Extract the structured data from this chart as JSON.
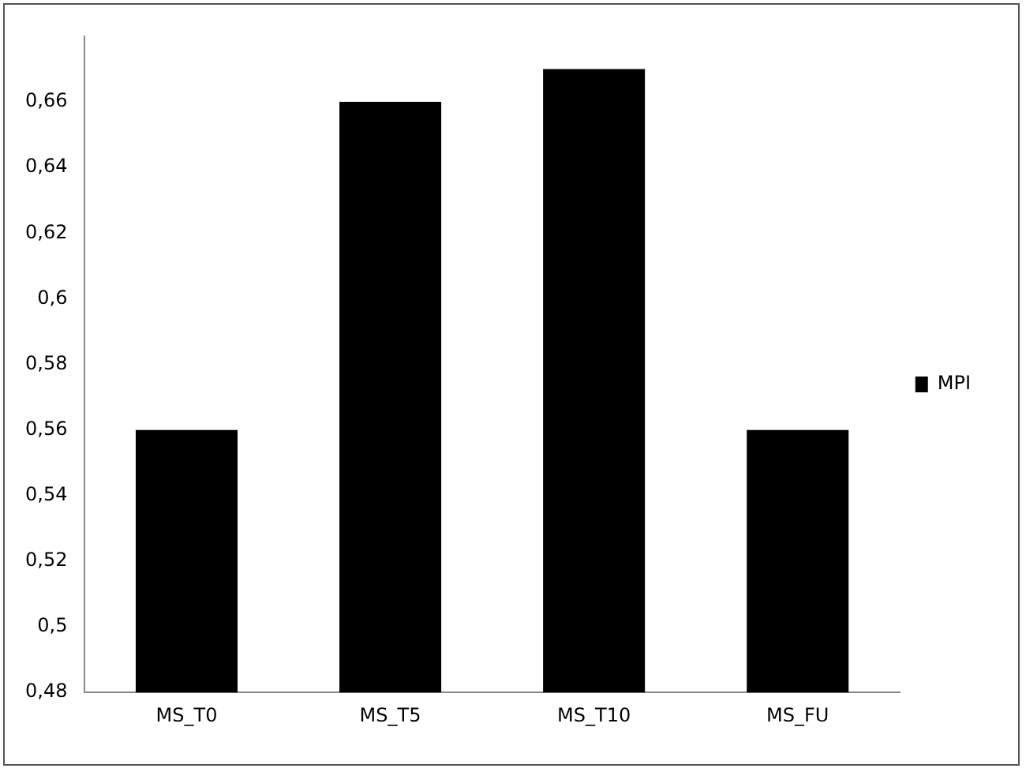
{
  "chart_data": {
    "type": "bar",
    "categories": [
      "MS_T0",
      "MS_T5",
      "MS_T10",
      "MS_FU"
    ],
    "series": [
      {
        "name": "MPI",
        "color": "#000000",
        "values": [
          0.56,
          0.66,
          0.67,
          0.56
        ]
      }
    ],
    "ylim": [
      0.48,
      0.68
    ],
    "yticks": [
      {
        "value": 0.48,
        "label": "0,48"
      },
      {
        "value": 0.5,
        "label": "0,5"
      },
      {
        "value": 0.52,
        "label": "0,52"
      },
      {
        "value": 0.54,
        "label": "0,54"
      },
      {
        "value": 0.56,
        "label": "0,56"
      },
      {
        "value": 0.58,
        "label": "0,58"
      },
      {
        "value": 0.6,
        "label": "0,6"
      },
      {
        "value": 0.62,
        "label": "0,62"
      },
      {
        "value": 0.64,
        "label": "0,64"
      },
      {
        "value": 0.66,
        "label": "0,66"
      }
    ],
    "grid": false,
    "legend": "right"
  }
}
